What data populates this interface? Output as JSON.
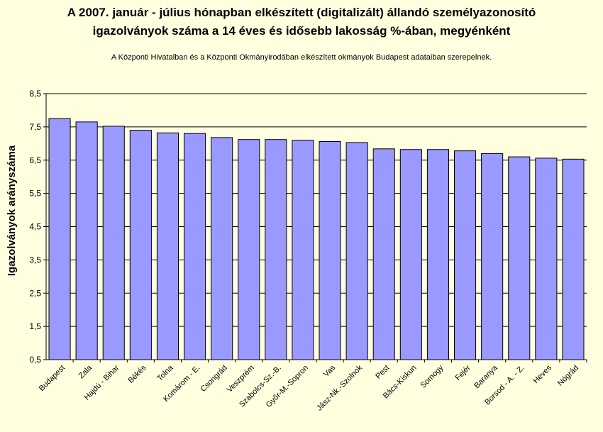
{
  "chart_data": {
    "type": "bar",
    "title": "A 2007. január - július hónapban elkészített (digitalizált) állandó személyazonosító",
    "title_line2": "igazolványok száma a 14 éves és idősebb lakosság %-ában, megyénként",
    "subtitle": "A  Központi Hivatalban és a Központi Okmányirodában elkészített  okmányok Budapest adataiban szerepelnek.",
    "xlabel": "",
    "ylabel": "Igazolványok arányszáma",
    "ylim": [
      0.5,
      8.5
    ],
    "yticks": [
      "0,5",
      "1,5",
      "2,5",
      "3,5",
      "4,5",
      "5,5",
      "6,5",
      "7,5",
      "8,5"
    ],
    "grid": true,
    "categories": [
      "Budapest",
      "Zala",
      "Hajdú - Bihar",
      "Békés",
      "Tolna",
      "Komárom - E.",
      "Csongrád",
      "Veszprém",
      "Szabolcs-Sz.-B.",
      "Győr-M.-Sopron",
      "Vas",
      "Jász-Nk.-Szolnok",
      "Pest",
      "Bács-Kiskun",
      "Somogy",
      "Fejér",
      "Baranya",
      "Borsod - A. - Z.",
      "Heves",
      "Nógrád"
    ],
    "values": [
      7.75,
      7.65,
      7.52,
      7.4,
      7.32,
      7.3,
      7.18,
      7.12,
      7.12,
      7.1,
      7.06,
      7.03,
      6.84,
      6.82,
      6.82,
      6.78,
      6.7,
      6.6,
      6.56,
      6.53
    ],
    "colors": {
      "bar": "#9999FF",
      "bar_stroke": "#000000",
      "plot_bg": "#FFFFE0",
      "grid": "#000000"
    }
  }
}
